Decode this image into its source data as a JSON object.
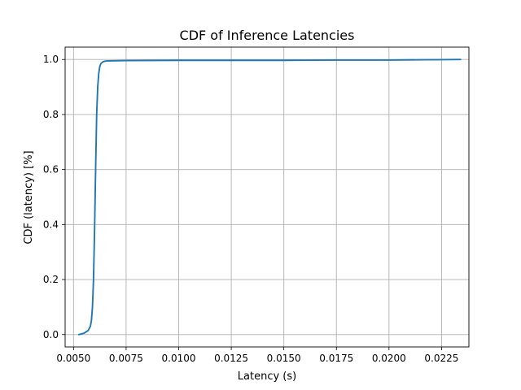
{
  "chart_data": {
    "type": "line",
    "title": "CDF of Inference Latencies",
    "xlabel": "Latency (s)",
    "ylabel": "CDF (latency) [%]",
    "xlim": [
      0.0046,
      0.0238
    ],
    "ylim": [
      -0.045,
      1.045
    ],
    "xticks": [
      0.005,
      0.0075,
      0.01,
      0.0125,
      0.015,
      0.0175,
      0.02,
      0.0225
    ],
    "xtick_labels": [
      "0.0050",
      "0.0075",
      "0.0100",
      "0.0125",
      "0.0150",
      "0.0175",
      "0.0200",
      "0.0225"
    ],
    "yticks": [
      0.0,
      0.2,
      0.4,
      0.6,
      0.8,
      1.0
    ],
    "ytick_labels": [
      "0.0",
      "0.2",
      "0.4",
      "0.6",
      "0.8",
      "1.0"
    ],
    "grid": true,
    "series": [
      {
        "color": "#1f77b4",
        "x": [
          0.00525,
          0.0055,
          0.0057,
          0.0058,
          0.00585,
          0.0059,
          0.00595,
          0.006,
          0.00605,
          0.0061,
          0.00615,
          0.0062,
          0.00625,
          0.0063,
          0.0064,
          0.0065,
          0.0066,
          0.0067,
          0.0075,
          0.01,
          0.0125,
          0.015,
          0.0175,
          0.02,
          0.0215,
          0.0225,
          0.0234
        ],
        "y": [
          0.0,
          0.005,
          0.015,
          0.03,
          0.05,
          0.1,
          0.2,
          0.38,
          0.6,
          0.8,
          0.9,
          0.95,
          0.975,
          0.985,
          0.992,
          0.994,
          0.995,
          0.995,
          0.996,
          0.997,
          0.997,
          0.997,
          0.998,
          0.998,
          0.999,
          0.9995,
          1.0
        ]
      }
    ]
  }
}
